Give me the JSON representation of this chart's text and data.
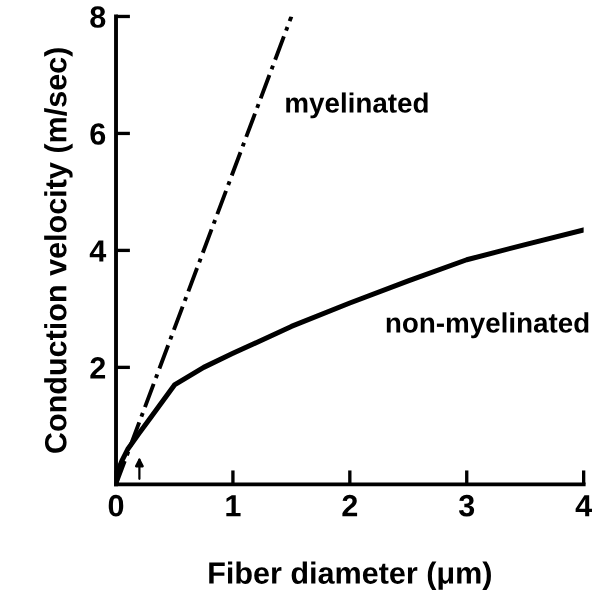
{
  "chart_data": {
    "type": "line",
    "xlabel": "Fiber diameter (μm)",
    "ylabel": "Conduction velocity (m/sec)",
    "series": [
      {
        "color": "#000000",
        "line_style": "dashdot",
        "x": [
          0,
          1.5
        ],
        "values": [
          0,
          8
        ]
      },
      {
        "color": "#000000",
        "line_style": "solid",
        "x": [
          0,
          0.02,
          0.05,
          0.1,
          0.2,
          0.3,
          0.5,
          0.75,
          1,
          1.5,
          2,
          2.5,
          3,
          3.5,
          4
        ],
        "values": [
          0,
          0.25,
          0.4,
          0.6,
          0.88,
          1.15,
          1.7,
          2.0,
          2.24,
          2.7,
          3.1,
          3.48,
          3.84,
          4.1,
          4.35
        ]
      }
    ],
    "annotations": [
      "myelinated",
      "non-myelinated"
    ],
    "xlim": [
      0,
      4
    ],
    "ylim": [
      0,
      8
    ],
    "xticks": [
      0,
      1,
      2,
      3,
      4
    ],
    "yticks": [
      2,
      4,
      6,
      8
    ],
    "grid": false,
    "legend": false
  }
}
